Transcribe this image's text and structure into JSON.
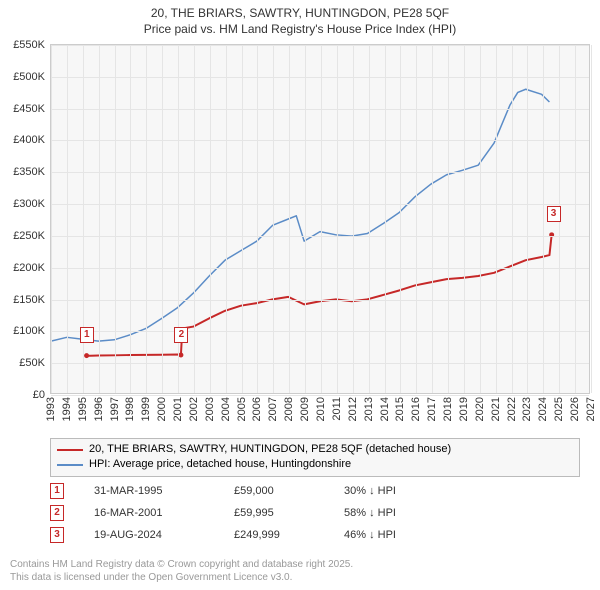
{
  "title": {
    "line1": "20, THE BRIARS, SAWTRY, HUNTINGDON, PE28 5QF",
    "line2": "Price paid vs. HM Land Registry's House Price Index (HPI)",
    "fontsize": 12,
    "color": "#333333"
  },
  "chart": {
    "type": "line",
    "background_color": "#f7f7f7",
    "grid_color": "#e5e5e5",
    "border_color": "#cccccc",
    "x_axis": {
      "min": 1993,
      "max": 2027,
      "ticks": [
        1993,
        1994,
        1995,
        1996,
        1997,
        1998,
        1999,
        2000,
        2001,
        2002,
        2003,
        2004,
        2005,
        2006,
        2007,
        2008,
        2009,
        2010,
        2011,
        2012,
        2013,
        2014,
        2015,
        2016,
        2017,
        2018,
        2019,
        2020,
        2021,
        2022,
        2023,
        2024,
        2025,
        2026,
        2027
      ],
      "label_fontsize": 11,
      "label_color": "#333333"
    },
    "y_axis": {
      "min": 0,
      "max": 550000,
      "ticks": [
        0,
        50000,
        100000,
        150000,
        200000,
        250000,
        300000,
        350000,
        400000,
        450000,
        500000,
        550000
      ],
      "tick_labels": [
        "£0",
        "£50K",
        "£100K",
        "£150K",
        "£200K",
        "£250K",
        "£300K",
        "£350K",
        "£400K",
        "£450K",
        "£500K",
        "£550K"
      ],
      "label_fontsize": 11,
      "label_color": "#333333"
    },
    "series": [
      {
        "id": "price_paid",
        "label": "20, THE BRIARS, SAWTRY, HUNTINGDON, PE28 5QF (detached house)",
        "color": "#c62828",
        "line_width": 2,
        "points": [
          [
            1995.25,
            59000
          ],
          [
            1995.5,
            59000
          ],
          [
            1996,
            59200
          ],
          [
            1997,
            59500
          ],
          [
            1998,
            60000
          ],
          [
            1999,
            60200
          ],
          [
            2000,
            60500
          ],
          [
            2001,
            60800
          ],
          [
            2001.21,
            59995
          ],
          [
            2001.3,
            102000
          ],
          [
            2002,
            105000
          ],
          [
            2003,
            118000
          ],
          [
            2004,
            130000
          ],
          [
            2005,
            138000
          ],
          [
            2006,
            142000
          ],
          [
            2007,
            148000
          ],
          [
            2008,
            152000
          ],
          [
            2009,
            140000
          ],
          [
            2010,
            145000
          ],
          [
            2011,
            148000
          ],
          [
            2012,
            145000
          ],
          [
            2013,
            148000
          ],
          [
            2014,
            155000
          ],
          [
            2015,
            162000
          ],
          [
            2016,
            170000
          ],
          [
            2017,
            175000
          ],
          [
            2018,
            180000
          ],
          [
            2019,
            182000
          ],
          [
            2020,
            185000
          ],
          [
            2021,
            190000
          ],
          [
            2022,
            200000
          ],
          [
            2023,
            210000
          ],
          [
            2024,
            215000
          ],
          [
            2024.5,
            218000
          ],
          [
            2024.64,
            249999
          ]
        ]
      },
      {
        "id": "hpi",
        "label": "HPI: Average price, detached house, Huntingdonshire",
        "color": "#5b8cc7",
        "line_width": 1.5,
        "points": [
          [
            1993,
            82000
          ],
          [
            1994,
            88000
          ],
          [
            1995,
            85000
          ],
          [
            1996,
            82000
          ],
          [
            1997,
            84000
          ],
          [
            1998,
            92000
          ],
          [
            1999,
            102000
          ],
          [
            2000,
            118000
          ],
          [
            2001,
            135000
          ],
          [
            2002,
            158000
          ],
          [
            2003,
            185000
          ],
          [
            2004,
            210000
          ],
          [
            2005,
            225000
          ],
          [
            2006,
            240000
          ],
          [
            2007,
            265000
          ],
          [
            2008,
            275000
          ],
          [
            2008.5,
            280000
          ],
          [
            2009,
            240000
          ],
          [
            2010,
            255000
          ],
          [
            2011,
            250000
          ],
          [
            2012,
            248000
          ],
          [
            2013,
            252000
          ],
          [
            2014,
            268000
          ],
          [
            2015,
            285000
          ],
          [
            2016,
            310000
          ],
          [
            2017,
            330000
          ],
          [
            2018,
            345000
          ],
          [
            2019,
            352000
          ],
          [
            2020,
            360000
          ],
          [
            2021,
            395000
          ],
          [
            2022,
            455000
          ],
          [
            2022.5,
            475000
          ],
          [
            2023,
            480000
          ],
          [
            2024,
            472000
          ],
          [
            2024.5,
            460000
          ]
        ]
      }
    ],
    "markers": [
      {
        "n": "1",
        "x": 1995.25,
        "y": 59000,
        "pos": "above"
      },
      {
        "n": "2",
        "x": 2001.21,
        "y": 59995,
        "pos": "above"
      },
      {
        "n": "3",
        "x": 2024.64,
        "y": 249999,
        "pos": "above-right"
      }
    ]
  },
  "legend": {
    "items": [
      {
        "color": "#c62828",
        "thickness": 2,
        "text": "20, THE BRIARS, SAWTRY, HUNTINGDON, PE28 5QF (detached house)"
      },
      {
        "color": "#5b8cc7",
        "thickness": 1.5,
        "text": "HPI: Average price, detached house, Huntingdonshire"
      }
    ],
    "fontsize": 11,
    "border_color": "#bbbbbb",
    "background": "#f7f7f7"
  },
  "marker_rows": [
    {
      "n": "1",
      "date": "31-MAR-1995",
      "price": "£59,000",
      "hpi": "30% ↓ HPI"
    },
    {
      "n": "2",
      "date": "16-MAR-2001",
      "price": "£59,995",
      "hpi": "58% ↓ HPI"
    },
    {
      "n": "3",
      "date": "19-AUG-2024",
      "price": "£249,999",
      "hpi": "46% ↓ HPI"
    }
  ],
  "attribution": {
    "line1": "Contains HM Land Registry data © Crown copyright and database right 2025.",
    "line2": "This data is licensed under the Open Government Licence v3.0.",
    "color": "#999999",
    "fontsize": 10
  }
}
